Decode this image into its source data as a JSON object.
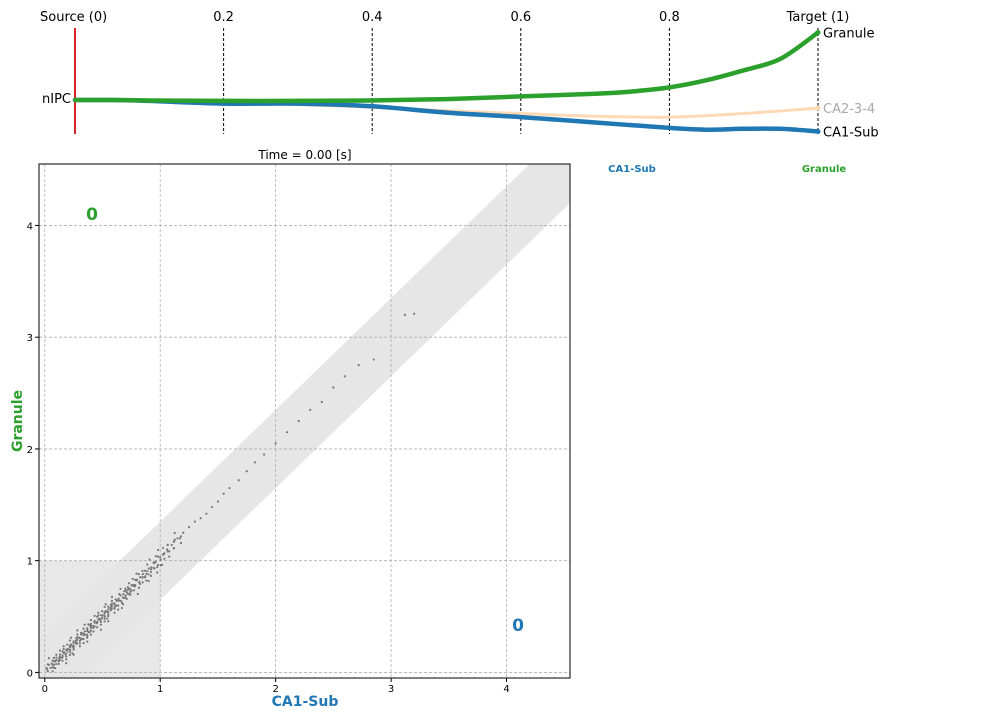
{
  "chart_data": [
    {
      "type": "line",
      "x_tick_labels": [
        "Source (0)",
        "0.2",
        "0.4",
        "0.6",
        "0.8",
        "Target (1)"
      ],
      "x_ticks": [
        0,
        0.2,
        0.4,
        0.6,
        0.8,
        1.0
      ],
      "xlim": [
        0,
        1
      ],
      "start_label": "nIPC",
      "current_time_marker": 0.0,
      "series": [
        {
          "name": "Granule",
          "color": "#2ca02c",
          "x": [
            0,
            0.05,
            0.1,
            0.2,
            0.3,
            0.4,
            0.5,
            0.6,
            0.7,
            0.75,
            0.8,
            0.85,
            0.9,
            0.95,
            1.0
          ],
          "y": [
            0.0,
            0.0,
            -0.005,
            -0.01,
            -0.01,
            -0.005,
            0.01,
            0.04,
            0.07,
            0.095,
            0.14,
            0.22,
            0.33,
            0.46,
            0.75
          ]
        },
        {
          "name": "CA2-3-4",
          "color": "#fdd9b5",
          "x": [
            0,
            0.1,
            0.2,
            0.3,
            0.4,
            0.5,
            0.6,
            0.7,
            0.8,
            0.9,
            1.0
          ],
          "y": [
            0.0,
            -0.01,
            -0.03,
            -0.05,
            -0.08,
            -0.12,
            -0.15,
            -0.18,
            -0.19,
            -0.15,
            -0.09
          ]
        },
        {
          "name": "CA1-Sub",
          "color": "#1f77b4",
          "x": [
            0,
            0.05,
            0.1,
            0.2,
            0.3,
            0.4,
            0.5,
            0.6,
            0.7,
            0.8,
            0.85,
            0.9,
            0.95,
            1.0
          ],
          "y": [
            0.0,
            0.0,
            -0.01,
            -0.04,
            -0.04,
            -0.07,
            -0.14,
            -0.19,
            -0.25,
            -0.31,
            -0.33,
            -0.32,
            -0.32,
            -0.35
          ]
        }
      ]
    },
    {
      "type": "scatter",
      "title": "Time = 0.00 [s]",
      "xlabel": "CA1-Sub",
      "ylabel": "Granule",
      "xlabel_color": "#1f77b4",
      "ylabel_color": "#2ca02c",
      "xlim": [
        -0.05,
        4.55
      ],
      "ylim": [
        -0.05,
        4.55
      ],
      "x_ticks": [
        0,
        1,
        2,
        3,
        4
      ],
      "y_ticks": [
        0,
        1,
        2,
        3,
        4
      ],
      "grid": true,
      "point_color": "#777777",
      "count_top_left": "0",
      "count_bottom_right": "0",
      "count_top_left_color": "#2ca02c",
      "count_bottom_right_color": "#1f77b4",
      "points": [
        [
          0.02,
          0.03
        ],
        [
          0.05,
          0.04
        ],
        [
          0.06,
          0.08
        ],
        [
          0.08,
          0.07
        ],
        [
          0.1,
          0.11
        ],
        [
          0.12,
          0.1
        ],
        [
          0.13,
          0.14
        ],
        [
          0.15,
          0.13
        ],
        [
          0.17,
          0.18
        ],
        [
          0.18,
          0.16
        ],
        [
          0.2,
          0.21
        ],
        [
          0.22,
          0.2
        ],
        [
          0.23,
          0.25
        ],
        [
          0.25,
          0.24
        ],
        [
          0.27,
          0.28
        ],
        [
          0.28,
          0.26
        ],
        [
          0.3,
          0.31
        ],
        [
          0.32,
          0.3
        ],
        [
          0.33,
          0.35
        ],
        [
          0.35,
          0.34
        ],
        [
          0.37,
          0.38
        ],
        [
          0.38,
          0.36
        ],
        [
          0.4,
          0.41
        ],
        [
          0.42,
          0.4
        ],
        [
          0.43,
          0.45
        ],
        [
          0.45,
          0.44
        ],
        [
          0.47,
          0.48
        ],
        [
          0.48,
          0.47
        ],
        [
          0.5,
          0.51
        ],
        [
          0.52,
          0.5
        ],
        [
          0.53,
          0.55
        ],
        [
          0.55,
          0.54
        ],
        [
          0.57,
          0.58
        ],
        [
          0.58,
          0.57
        ],
        [
          0.6,
          0.61
        ],
        [
          0.62,
          0.6
        ],
        [
          0.64,
          0.66
        ],
        [
          0.66,
          0.64
        ],
        [
          0.68,
          0.7
        ],
        [
          0.7,
          0.69
        ],
        [
          0.72,
          0.74
        ],
        [
          0.74,
          0.72
        ],
        [
          0.76,
          0.78
        ],
        [
          0.78,
          0.77
        ],
        [
          0.8,
          0.83
        ],
        [
          0.82,
          0.81
        ],
        [
          0.85,
          0.88
        ],
        [
          0.87,
          0.86
        ],
        [
          0.9,
          0.93
        ],
        [
          0.92,
          0.9
        ],
        [
          0.95,
          0.98
        ],
        [
          0.98,
          0.96
        ],
        [
          1.0,
          1.03
        ],
        [
          1.03,
          1.06
        ],
        [
          1.06,
          1.1
        ],
        [
          1.1,
          1.14
        ],
        [
          1.15,
          1.2
        ],
        [
          1.2,
          1.25
        ],
        [
          1.25,
          1.3
        ],
        [
          1.3,
          1.35
        ],
        [
          1.35,
          1.38
        ],
        [
          1.4,
          1.42
        ],
        [
          1.45,
          1.48
        ],
        [
          1.5,
          1.53
        ],
        [
          1.55,
          1.6
        ],
        [
          1.6,
          1.65
        ],
        [
          1.68,
          1.72
        ],
        [
          1.75,
          1.8
        ],
        [
          1.82,
          1.88
        ],
        [
          1.9,
          1.95
        ],
        [
          2.0,
          2.05
        ],
        [
          2.1,
          2.15
        ],
        [
          2.2,
          2.25
        ],
        [
          2.3,
          2.35
        ],
        [
          2.4,
          2.42
        ],
        [
          2.5,
          2.55
        ],
        [
          2.6,
          2.65
        ],
        [
          2.72,
          2.75
        ],
        [
          2.85,
          2.8
        ],
        [
          3.12,
          3.2
        ],
        [
          3.2,
          3.21
        ]
      ]
    }
  ]
}
